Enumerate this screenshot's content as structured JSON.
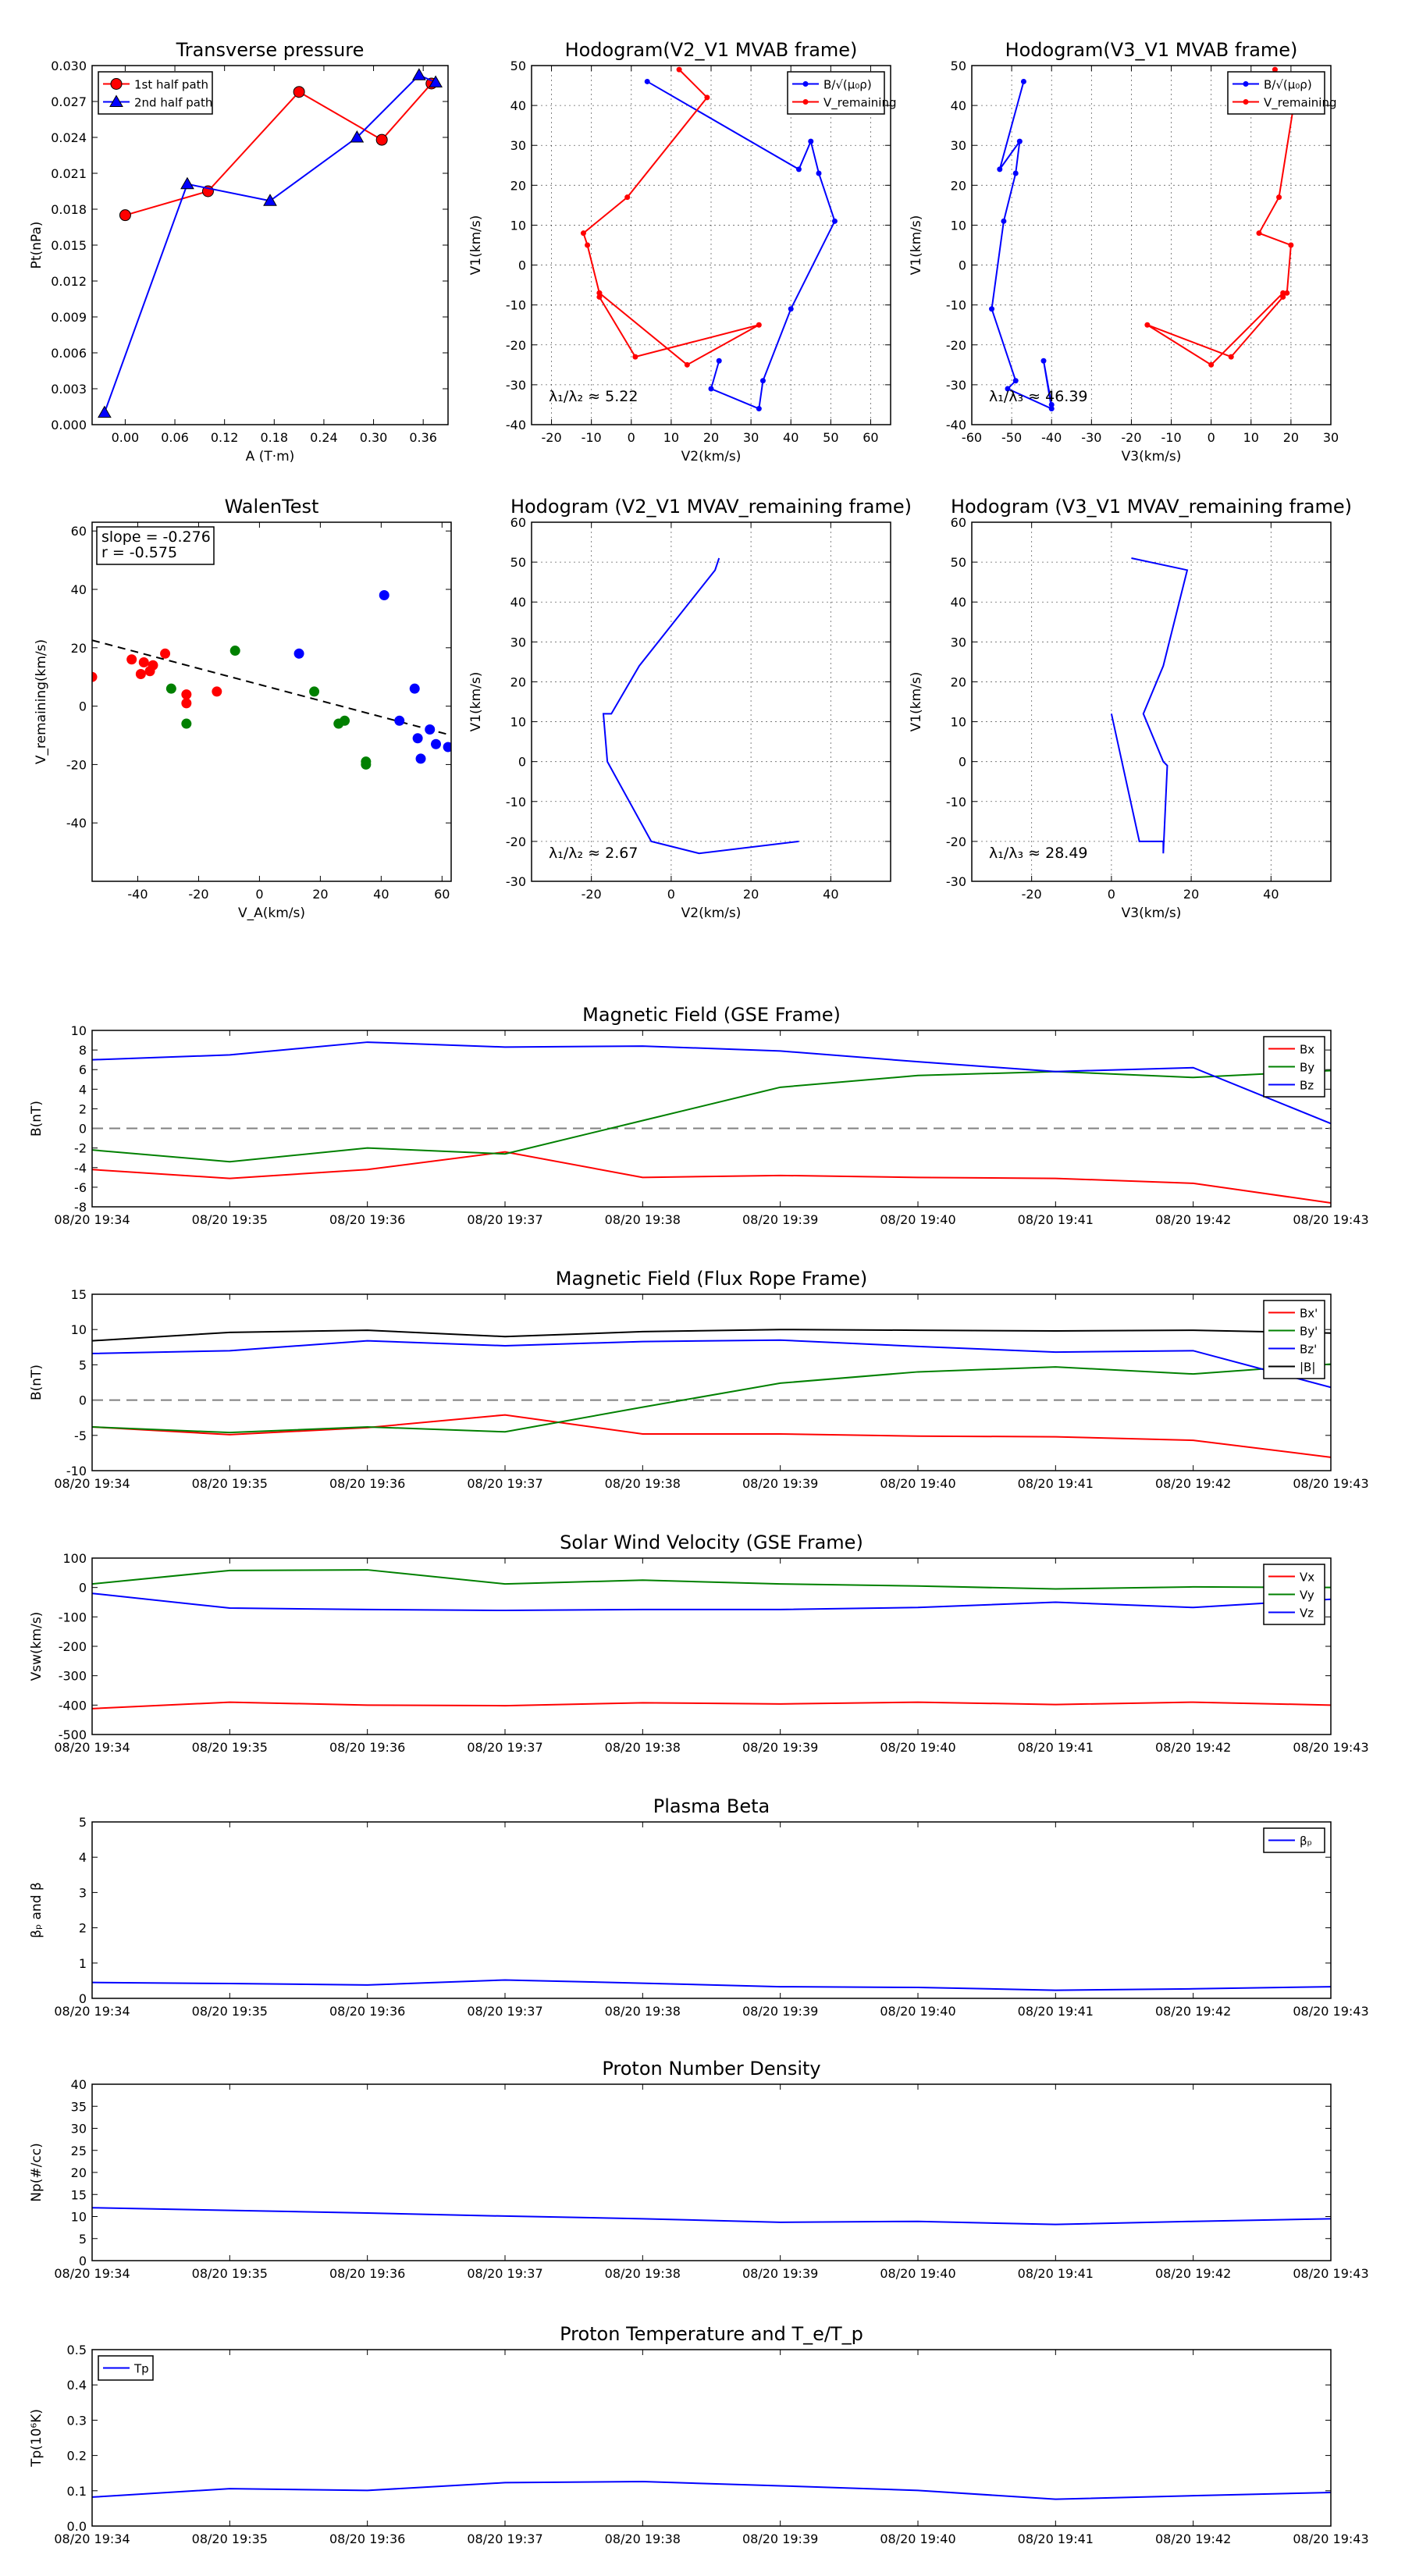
{
  "colors": {
    "red": "#ff0000",
    "green": "#008000",
    "blue": "#0000ff",
    "black": "#000000",
    "dash": "#808080"
  },
  "time_labels": [
    "08/20 19:34",
    "08/20 19:35",
    "08/20 19:36",
    "08/20 19:37",
    "08/20 19:38",
    "08/20 19:39",
    "08/20 19:40",
    "08/20 19:41",
    "08/20 19:42",
    "08/20 19:43"
  ],
  "chart_data": [
    {
      "type": "line",
      "title": "Transverse pressure",
      "xlabel": "A (T·m)",
      "ylabel": "Pt(nPa)",
      "xlim": [
        -0.04,
        0.39
      ],
      "ylim": [
        0,
        0.03
      ],
      "xticks": [
        0,
        0.06,
        0.12,
        0.18,
        0.24,
        0.3,
        0.36
      ],
      "xticklabels": [
        "0.00",
        "0.06",
        "0.12",
        "0.18",
        "0.24",
        "0.30",
        "0.36"
      ],
      "yticks": [
        0,
        0.003,
        0.006,
        0.009,
        0.012,
        0.015,
        0.018,
        0.021,
        0.024,
        0.027,
        0.03
      ],
      "yticklabels": [
        "0.000",
        "0.003",
        "0.006",
        "0.009",
        "0.012",
        "0.015",
        "0.018",
        "0.021",
        "0.024",
        "0.027",
        "0.030"
      ],
      "grid": false,
      "legend": "top-left",
      "series": [
        {
          "name": "1st half path",
          "color": "#ff0000",
          "marker": "circle",
          "x": [
            0.0,
            0.1,
            0.21,
            0.31,
            0.37
          ],
          "y": [
            0.0175,
            0.0195,
            0.0278,
            0.0238,
            0.0285
          ]
        },
        {
          "name": "2nd half path",
          "color": "#0000ff",
          "marker": "triangle",
          "x": [
            -0.025,
            0.075,
            0.175,
            0.28,
            0.355,
            0.375
          ],
          "y": [
            0.001,
            0.0201,
            0.0187,
            0.024,
            0.0292,
            0.0286
          ]
        }
      ]
    },
    {
      "type": "line",
      "title": "Hodogram(V2_V1 MVAB frame)",
      "xlabel": "V2(km/s)",
      "ylabel": "V1(km/s)",
      "xlim": [
        -25,
        65
      ],
      "ylim": [
        -40,
        50
      ],
      "xticks": [
        -20,
        -10,
        0,
        10,
        20,
        30,
        40,
        50,
        60
      ],
      "yticks": [
        -40,
        -30,
        -20,
        -10,
        0,
        10,
        20,
        30,
        40,
        50
      ],
      "grid": true,
      "legend": "top-right",
      "annotation": "λ₁/λ₂ ≈ 5.22",
      "series": [
        {
          "name": "B/√(μ₀ρ)",
          "color": "#0000ff",
          "marker": "dot",
          "x": [
            4,
            42,
            45,
            47,
            51,
            40,
            33,
            32,
            20,
            22
          ],
          "y": [
            46,
            24,
            31,
            23,
            11,
            -11,
            -29,
            -36,
            -31,
            -24
          ]
        },
        {
          "name": "V_remaining",
          "color": "#ff0000",
          "marker": "dot",
          "x": [
            12,
            19,
            -1,
            -12,
            -11,
            -8,
            -8,
            1,
            32,
            14,
            -8
          ],
          "y": [
            49,
            42,
            17,
            8,
            5,
            -7,
            -8,
            -23,
            -15,
            -25,
            -7
          ]
        }
      ]
    },
    {
      "type": "line",
      "title": "Hodogram(V3_V1 MVAB frame)",
      "xlabel": "V3(km/s)",
      "ylabel": "V1(km/s)",
      "xlim": [
        -60,
        30
      ],
      "ylim": [
        -40,
        50
      ],
      "xticks": [
        -60,
        -50,
        -40,
        -30,
        -20,
        -10,
        0,
        10,
        20,
        30
      ],
      "yticks": [
        -40,
        -30,
        -20,
        -10,
        0,
        10,
        20,
        30,
        40,
        50
      ],
      "grid": true,
      "legend": "top-right",
      "annotation": "λ₁/λ₃ ≈ 46.39",
      "series": [
        {
          "name": "B/√(μ₀ρ)",
          "color": "#0000ff",
          "marker": "dot",
          "x": [
            -47,
            -53,
            -48,
            -49,
            -52,
            -55,
            -49,
            -51,
            -40,
            -42,
            -40
          ],
          "y": [
            46,
            24,
            31,
            23,
            11,
            -11,
            -29,
            -31,
            -36,
            -24,
            -35
          ]
        },
        {
          "name": "V_remaining",
          "color": "#ff0000",
          "marker": "dot",
          "x": [
            16,
            21,
            17,
            12,
            20,
            19,
            18,
            5,
            -16,
            0,
            18
          ],
          "y": [
            49,
            42,
            17,
            8,
            5,
            -7,
            -8,
            -23,
            -15,
            -25,
            -7
          ]
        }
      ]
    },
    {
      "type": "scatter",
      "title": "WalenTest",
      "xlabel": "V_A(km/s)",
      "ylabel": "V_remaining(km/s)",
      "xlim": [
        -55,
        63
      ],
      "ylim": [
        -60,
        63
      ],
      "xticks": [
        -40,
        -20,
        0,
        20,
        40,
        60
      ],
      "yticks": [
        -40,
        -20,
        0,
        20,
        40,
        60
      ],
      "grid": false,
      "annotations": [
        "slope = -0.276",
        "r = -0.575"
      ],
      "fit_line": {
        "slope": -0.276,
        "intercept": 7.4
      },
      "series": [
        {
          "color": "#ff0000",
          "x": [
            -55,
            -42,
            -38,
            -35,
            -36,
            -39,
            -31,
            -24,
            -24,
            -14
          ],
          "y": [
            10,
            16,
            15,
            14,
            12,
            11,
            18,
            4,
            1,
            5
          ]
        },
        {
          "color": "#008000",
          "x": [
            -29,
            -24,
            -8,
            18,
            26,
            28,
            35,
            35
          ],
          "y": [
            6,
            -6,
            19,
            5,
            -6,
            -5,
            -19,
            -20
          ]
        },
        {
          "color": "#0000ff",
          "x": [
            13,
            41,
            46,
            51,
            52,
            53,
            56,
            58,
            62,
            65
          ],
          "y": [
            18,
            38,
            -5,
            6,
            -11,
            -18,
            -8,
            -13,
            -14,
            -18
          ]
        }
      ]
    },
    {
      "type": "line",
      "title": "Hodogram (V2_V1 MVAV_remaining frame)",
      "xlabel": "V2(km/s)",
      "ylabel": "V1(km/s)",
      "xlim": [
        -35,
        55
      ],
      "ylim": [
        -30,
        60
      ],
      "xticks": [
        -20,
        0,
        20,
        40
      ],
      "yticks": [
        -30,
        -20,
        -10,
        0,
        10,
        20,
        30,
        40,
        50,
        60
      ],
      "grid": true,
      "annotation": "λ₁/λ₂ ≈ 2.67",
      "series": [
        {
          "color": "#0000ff",
          "x": [
            12,
            11,
            -8,
            -15,
            -17,
            -16,
            -5,
            7,
            32
          ],
          "y": [
            51,
            48,
            24,
            12,
            12,
            0,
            -20,
            -23,
            -20
          ]
        }
      ]
    },
    {
      "type": "line",
      "title": "Hodogram (V3_V1 MVAV_remaining frame)",
      "xlabel": "V3(km/s)",
      "ylabel": "V1(km/s)",
      "xlim": [
        -35,
        55
      ],
      "ylim": [
        -30,
        60
      ],
      "xticks": [
        -20,
        0,
        20,
        40
      ],
      "yticks": [
        -30,
        -20,
        -10,
        0,
        10,
        20,
        30,
        40,
        50,
        60
      ],
      "grid": true,
      "annotation": "λ₁/λ₃ ≈ 28.49",
      "series": [
        {
          "color": "#0000ff",
          "x": [
            5,
            19,
            13,
            8,
            13,
            14,
            13,
            13,
            11,
            7,
            0
          ],
          "y": [
            51,
            48,
            24,
            12,
            0,
            -1,
            -23,
            -20,
            -20,
            -20,
            12
          ]
        }
      ]
    },
    {
      "type": "line",
      "title": "Magnetic Field (GSE Frame)",
      "ylabel": "B(nT)",
      "x": [
        0,
        1,
        2,
        3,
        4,
        5,
        6,
        7,
        8,
        9
      ],
      "xlim": [
        0,
        9
      ],
      "ylim": [
        -8,
        10
      ],
      "yticks": [
        -8,
        -6,
        -4,
        -2,
        0,
        2,
        4,
        6,
        8,
        10
      ],
      "zero_line": true,
      "legend": "top-right",
      "series": [
        {
          "name": "Bx",
          "color": "#ff0000",
          "values": [
            -4.2,
            -5.1,
            -4.2,
            -2.4,
            -5.0,
            -4.8,
            -5.0,
            -5.1,
            -5.6,
            -7.6
          ]
        },
        {
          "name": "By",
          "color": "#008000",
          "values": [
            -2.2,
            -3.4,
            -2.0,
            -2.6,
            0.8,
            4.2,
            5.4,
            5.8,
            5.2,
            5.9
          ]
        },
        {
          "name": "Bz",
          "color": "#0000ff",
          "values": [
            7.0,
            7.5,
            8.8,
            8.3,
            8.4,
            7.9,
            6.8,
            5.8,
            6.2,
            0.5
          ]
        }
      ]
    },
    {
      "type": "line",
      "title": "Magnetic Field (Flux Rope Frame)",
      "ylabel": "B(nT)",
      "x": [
        0,
        1,
        2,
        3,
        4,
        5,
        6,
        7,
        8,
        9
      ],
      "xlim": [
        0,
        9
      ],
      "ylim": [
        -10,
        15
      ],
      "yticks": [
        -10,
        -5,
        0,
        5,
        10,
        15
      ],
      "zero_line": true,
      "legend": "top-right",
      "series": [
        {
          "name": "Bx'",
          "color": "#ff0000",
          "values": [
            -3.8,
            -4.9,
            -3.9,
            -2.1,
            -4.8,
            -4.8,
            -5.1,
            -5.2,
            -5.7,
            -8.1
          ]
        },
        {
          "name": "By'",
          "color": "#008000",
          "values": [
            -3.8,
            -4.6,
            -3.8,
            -4.5,
            -1.0,
            2.4,
            4.0,
            4.7,
            3.7,
            5.1
          ]
        },
        {
          "name": "Bz'",
          "color": "#0000ff",
          "values": [
            6.6,
            7.0,
            8.4,
            7.7,
            8.3,
            8.5,
            7.6,
            6.8,
            7.0,
            1.8
          ]
        },
        {
          "name": "|B|",
          "color": "#000000",
          "values": [
            8.4,
            9.6,
            9.9,
            9.0,
            9.7,
            10.0,
            9.9,
            9.8,
            9.9,
            9.5
          ]
        }
      ]
    },
    {
      "type": "line",
      "title": "Solar Wind Velocity (GSE Frame)",
      "ylabel": "Vsw(km/s)",
      "x": [
        0,
        1,
        2,
        3,
        4,
        5,
        6,
        7,
        8,
        9
      ],
      "xlim": [
        0,
        9
      ],
      "ylim": [
        -500,
        100
      ],
      "yticks": [
        -500,
        -400,
        -300,
        -200,
        -100,
        0,
        100
      ],
      "legend": "top-right",
      "series": [
        {
          "name": "Vx",
          "color": "#ff0000",
          "values": [
            -412,
            -390,
            -400,
            -402,
            -392,
            -396,
            -390,
            -398,
            -390,
            -400
          ]
        },
        {
          "name": "Vy",
          "color": "#008000",
          "values": [
            12,
            58,
            60,
            12,
            25,
            12,
            5,
            -5,
            2,
            0
          ]
        },
        {
          "name": "Vz",
          "color": "#0000ff",
          "values": [
            -20,
            -70,
            -75,
            -78,
            -75,
            -75,
            -68,
            -50,
            -68,
            -40
          ]
        }
      ]
    },
    {
      "type": "line",
      "title": "Plasma Beta",
      "ylabel": "βₚ and β",
      "x": [
        0,
        1,
        2,
        3,
        4,
        5,
        6,
        7,
        8,
        9
      ],
      "xlim": [
        0,
        9
      ],
      "ylim": [
        0,
        5
      ],
      "yticks": [
        0,
        1,
        2,
        3,
        4,
        5
      ],
      "legend": "top-right",
      "series": [
        {
          "name": "βₚ",
          "color": "#0000ff",
          "values": [
            0.45,
            0.42,
            0.38,
            0.52,
            0.43,
            0.33,
            0.31,
            0.23,
            0.27,
            0.33
          ]
        }
      ]
    },
    {
      "type": "line",
      "title": "Proton Number Density",
      "ylabel": "Np(#/cc)",
      "x": [
        0,
        1,
        2,
        3,
        4,
        5,
        6,
        7,
        8,
        9
      ],
      "xlim": [
        0,
        9
      ],
      "ylim": [
        0,
        40
      ],
      "yticks": [
        0,
        5,
        10,
        15,
        20,
        25,
        30,
        35,
        40
      ],
      "series": [
        {
          "color": "#0000ff",
          "values": [
            12.0,
            11.4,
            10.8,
            10.1,
            9.5,
            8.7,
            8.9,
            8.2,
            8.9,
            9.5
          ]
        }
      ]
    },
    {
      "type": "line",
      "title": "Proton Temperature and T_e/T_p",
      "ylabel": "Tp(10⁶K)",
      "x": [
        0,
        1,
        2,
        3,
        4,
        5,
        6,
        7,
        8,
        9
      ],
      "xlim": [
        0,
        9
      ],
      "ylim": [
        0,
        0.5
      ],
      "yticks": [
        0,
        0.1,
        0.2,
        0.3,
        0.4,
        0.5
      ],
      "yticklabels": [
        "0.0",
        "0.1",
        "0.2",
        "0.3",
        "0.4",
        "0.5"
      ],
      "legend": "top-left",
      "series": [
        {
          "name": "Tp",
          "color": "#0000ff",
          "values": [
            0.082,
            0.106,
            0.101,
            0.123,
            0.126,
            0.114,
            0.101,
            0.076,
            0.086,
            0.095
          ]
        }
      ]
    }
  ]
}
